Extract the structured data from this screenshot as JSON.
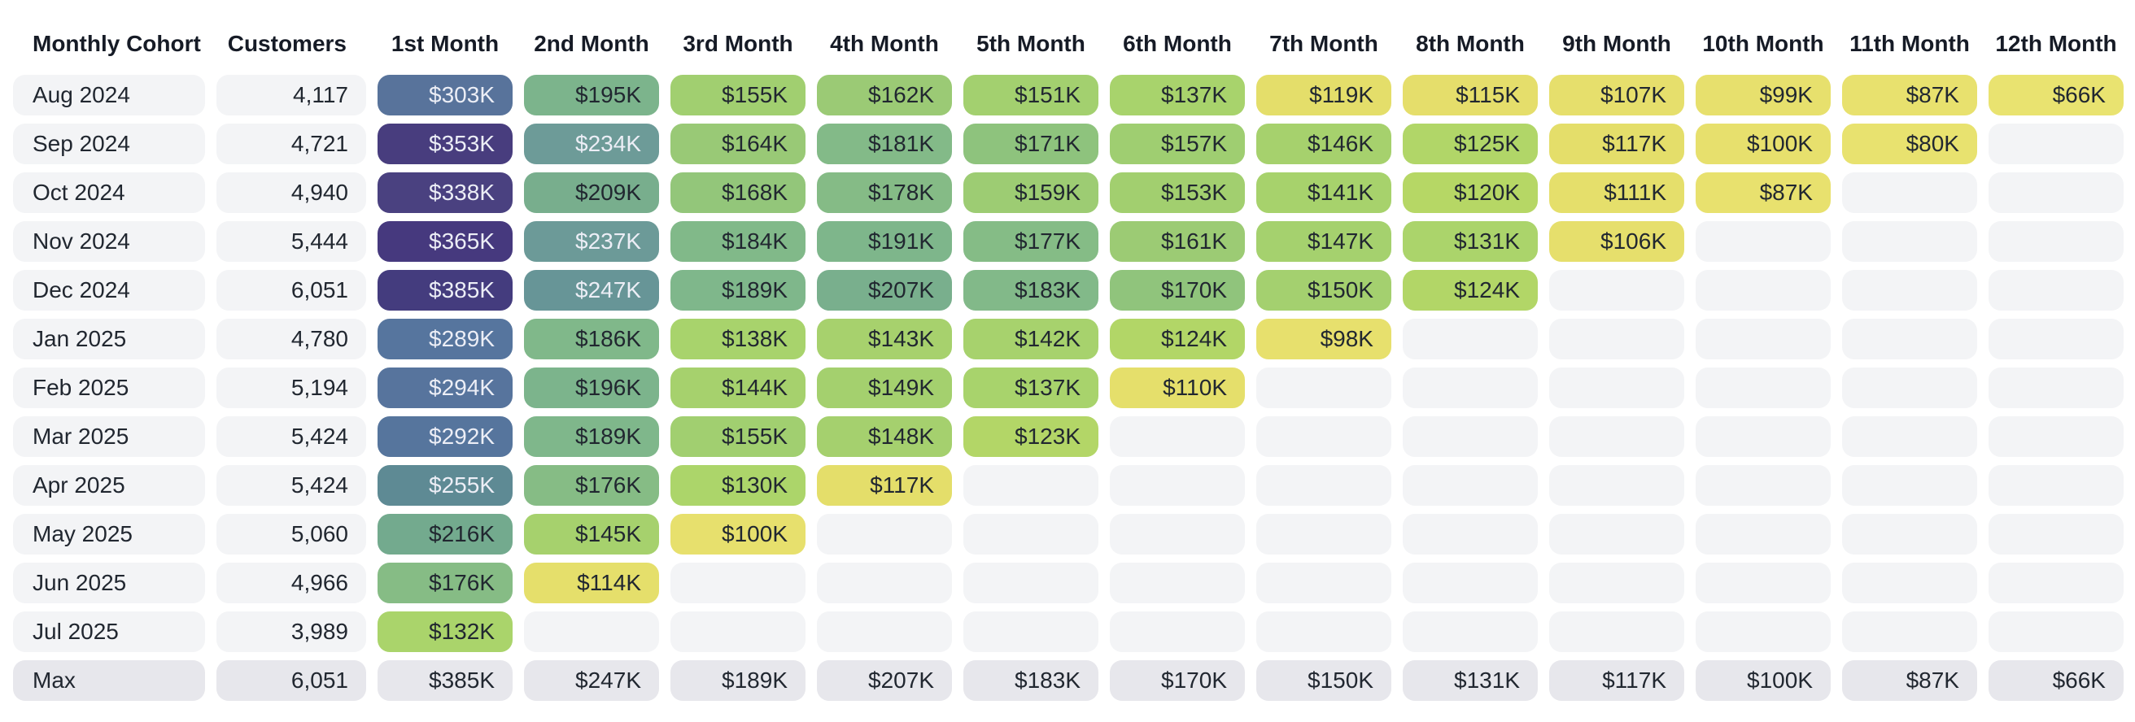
{
  "colors": {
    "label_cell_bg": "#f3f4f6",
    "empty_cell_bg": "#f3f4f6",
    "max_row_bg": "#e7e7ec",
    "header_text": "#161b26",
    "text_dark": "#212730",
    "text_light": "#eceef6",
    "light_text_value_min": 230,
    "heat_stops": [
      [
        66,
        "#e9e370"
      ],
      [
        100,
        "#e7e06d"
      ],
      [
        119,
        "#e4de6a"
      ],
      [
        120,
        "#b6d765"
      ],
      [
        132,
        "#aad46b"
      ],
      [
        145,
        "#a6d16d"
      ],
      [
        155,
        "#a1cf70"
      ],
      [
        164,
        "#99c976"
      ],
      [
        171,
        "#8ec37d"
      ],
      [
        176,
        "#86bc85"
      ],
      [
        186,
        "#80b88a"
      ],
      [
        196,
        "#7cb48c"
      ],
      [
        209,
        "#78ae8d"
      ],
      [
        216,
        "#73aa8e"
      ],
      [
        234,
        "#6d9b98"
      ],
      [
        247,
        "#679597"
      ],
      [
        255,
        "#5e8a94"
      ],
      [
        289,
        "#56759e"
      ],
      [
        303,
        "#58739b"
      ],
      [
        320,
        "#4f5e92"
      ],
      [
        338,
        "#4a4180"
      ],
      [
        353,
        "#483d7e"
      ],
      [
        365,
        "#46397e"
      ],
      [
        385,
        "#443c7e"
      ]
    ]
  },
  "table": {
    "columns": [
      "Monthly Cohort",
      "Customers",
      "1st Month",
      "2nd Month",
      "3rd Month",
      "4th Month",
      "5th Month",
      "6th Month",
      "7th Month",
      "8th Month",
      "9th Month",
      "10th Month",
      "11th Month",
      "12th Month"
    ],
    "rows": [
      {
        "cohort": "Aug 2024",
        "customers": "4,117",
        "values": [
          "$303K",
          "$195K",
          "$155K",
          "$162K",
          "$151K",
          "$137K",
          "$119K",
          "$115K",
          "$107K",
          "$99K",
          "$87K",
          "$66K"
        ]
      },
      {
        "cohort": "Sep 2024",
        "customers": "4,721",
        "values": [
          "$353K",
          "$234K",
          "$164K",
          "$181K",
          "$171K",
          "$157K",
          "$146K",
          "$125K",
          "$117K",
          "$100K",
          "$80K",
          null
        ]
      },
      {
        "cohort": "Oct 2024",
        "customers": "4,940",
        "values": [
          "$338K",
          "$209K",
          "$168K",
          "$178K",
          "$159K",
          "$153K",
          "$141K",
          "$120K",
          "$111K",
          "$87K",
          null,
          null
        ]
      },
      {
        "cohort": "Nov 2024",
        "customers": "5,444",
        "values": [
          "$365K",
          "$237K",
          "$184K",
          "$191K",
          "$177K",
          "$161K",
          "$147K",
          "$131K",
          "$106K",
          null,
          null,
          null
        ]
      },
      {
        "cohort": "Dec 2024",
        "customers": "6,051",
        "values": [
          "$385K",
          "$247K",
          "$189K",
          "$207K",
          "$183K",
          "$170K",
          "$150K",
          "$124K",
          null,
          null,
          null,
          null
        ]
      },
      {
        "cohort": "Jan 2025",
        "customers": "4,780",
        "values": [
          "$289K",
          "$186K",
          "$138K",
          "$143K",
          "$142K",
          "$124K",
          "$98K",
          null,
          null,
          null,
          null,
          null
        ]
      },
      {
        "cohort": "Feb 2025",
        "customers": "5,194",
        "values": [
          "$294K",
          "$196K",
          "$144K",
          "$149K",
          "$137K",
          "$110K",
          null,
          null,
          null,
          null,
          null,
          null
        ]
      },
      {
        "cohort": "Mar 2025",
        "customers": "5,424",
        "values": [
          "$292K",
          "$189K",
          "$155K",
          "$148K",
          "$123K",
          null,
          null,
          null,
          null,
          null,
          null,
          null
        ]
      },
      {
        "cohort": "Apr 2025",
        "customers": "5,424",
        "values": [
          "$255K",
          "$176K",
          "$130K",
          "$117K",
          null,
          null,
          null,
          null,
          null,
          null,
          null,
          null
        ]
      },
      {
        "cohort": "May 2025",
        "customers": "5,060",
        "values": [
          "$216K",
          "$145K",
          "$100K",
          null,
          null,
          null,
          null,
          null,
          null,
          null,
          null,
          null
        ]
      },
      {
        "cohort": "Jun 2025",
        "customers": "4,966",
        "values": [
          "$176K",
          "$114K",
          null,
          null,
          null,
          null,
          null,
          null,
          null,
          null,
          null,
          null
        ]
      },
      {
        "cohort": "Jul 2025",
        "customers": "3,989",
        "values": [
          "$132K",
          null,
          null,
          null,
          null,
          null,
          null,
          null,
          null,
          null,
          null,
          null
        ]
      }
    ],
    "max_row": {
      "cohort": "Max",
      "customers": "6,051",
      "values": [
        "$385K",
        "$247K",
        "$189K",
        "$207K",
        "$183K",
        "$170K",
        "$150K",
        "$131K",
        "$117K",
        "$100K",
        "$87K",
        "$66K"
      ]
    }
  },
  "chart_data": {
    "type": "heatmap",
    "x_labels": [
      "1st Month",
      "2nd Month",
      "3rd Month",
      "4th Month",
      "5th Month",
      "6th Month",
      "7th Month",
      "8th Month",
      "9th Month",
      "10th Month",
      "11th Month",
      "12th Month"
    ],
    "y_labels": [
      "Aug 2024",
      "Sep 2024",
      "Oct 2024",
      "Nov 2024",
      "Dec 2024",
      "Jan 2025",
      "Feb 2025",
      "Mar 2025",
      "Apr 2025",
      "May 2025",
      "Jun 2025",
      "Jul 2025",
      "Max"
    ],
    "customers": [
      4117,
      4721,
      4940,
      5444,
      6051,
      4780,
      5194,
      5424,
      5424,
      5060,
      4966,
      3989,
      6051
    ],
    "values_usd_k": [
      [
        303,
        195,
        155,
        162,
        151,
        137,
        119,
        115,
        107,
        99,
        87,
        66
      ],
      [
        353,
        234,
        164,
        181,
        171,
        157,
        146,
        125,
        117,
        100,
        80,
        null
      ],
      [
        338,
        209,
        168,
        178,
        159,
        153,
        141,
        120,
        111,
        87,
        null,
        null
      ],
      [
        365,
        237,
        184,
        191,
        177,
        161,
        147,
        131,
        106,
        null,
        null,
        null
      ],
      [
        385,
        247,
        189,
        207,
        183,
        170,
        150,
        124,
        null,
        null,
        null,
        null
      ],
      [
        289,
        186,
        138,
        143,
        142,
        124,
        98,
        null,
        null,
        null,
        null,
        null
      ],
      [
        294,
        196,
        144,
        149,
        137,
        110,
        null,
        null,
        null,
        null,
        null,
        null
      ],
      [
        292,
        189,
        155,
        148,
        123,
        null,
        null,
        null,
        null,
        null,
        null,
        null
      ],
      [
        255,
        176,
        130,
        117,
        null,
        null,
        null,
        null,
        null,
        null,
        null,
        null
      ],
      [
        216,
        145,
        100,
        null,
        null,
        null,
        null,
        null,
        null,
        null,
        null,
        null
      ],
      [
        176,
        114,
        null,
        null,
        null,
        null,
        null,
        null,
        null,
        null,
        null,
        null
      ],
      [
        132,
        null,
        null,
        null,
        null,
        null,
        null,
        null,
        null,
        null,
        null,
        null
      ],
      [
        385,
        247,
        189,
        207,
        183,
        170,
        150,
        131,
        117,
        100,
        87,
        66
      ]
    ],
    "value_range_usd_k": [
      66,
      385
    ],
    "color_scale": "viridis-muted (high=dark purple, low=yellow)",
    "legend": "none",
    "grid": "rounded pill cells with white gutters"
  }
}
